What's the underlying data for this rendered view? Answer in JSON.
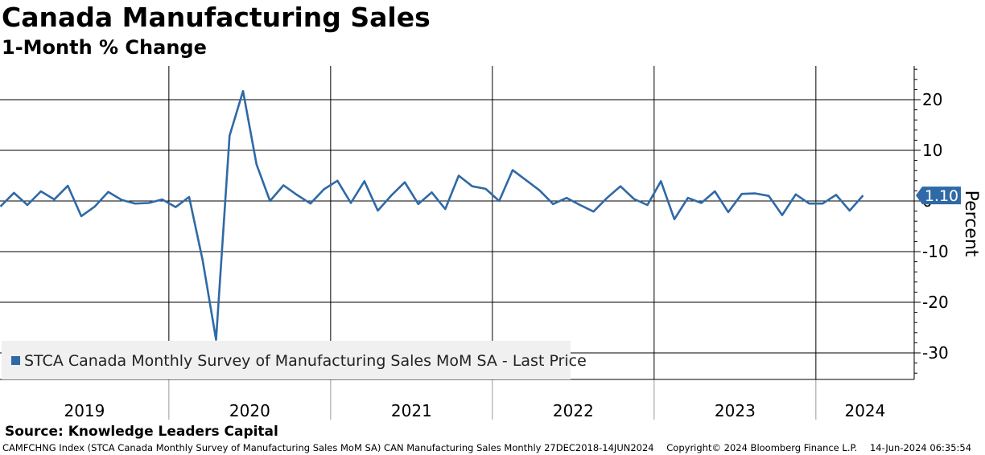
{
  "header": {
    "title": "Canada Manufacturing Sales",
    "subtitle": "1-Month % Change"
  },
  "legend": {
    "label": "STCA Canada Monthly Survey of Manufacturing Sales MoM SA - Last Price"
  },
  "source": "Source: Knowledge Leaders Capital",
  "footer": {
    "ticker": "CAMFCHNG Index (STCA Canada Monthly Survey of Manufacturing Sales MoM SA) CAN Manufacturing Sales  Monthly 27DEC2018-14JUN2024",
    "copyright": "Copyright© 2024 Bloomberg Finance L.P.",
    "timestamp": "14-Jun-2024 06:35:54"
  },
  "colors": {
    "series": "#2f69a6",
    "badge": "#2f69a6",
    "grid": "#000000"
  },
  "chart_data": {
    "type": "line",
    "title": "Canada Manufacturing Sales",
    "subtitle": "1-Month % Change",
    "ylabel": "Percent",
    "xlabel": "",
    "ylim": [
      -35,
      27
    ],
    "y_ticks": [
      20,
      10,
      0,
      -10,
      -20,
      -30
    ],
    "x_start": "2018-12",
    "year_labels": [
      "2019",
      "2020",
      "2021",
      "2022",
      "2023",
      "2024"
    ],
    "last_value_label": "1.10",
    "legend_position": "bottom-left",
    "grid": true,
    "series": [
      {
        "name": "STCA Canada Monthly Survey of Manufacturing Sales MoM SA - Last Price",
        "x": [
          "2018-12",
          "2019-01",
          "2019-02",
          "2019-03",
          "2019-04",
          "2019-05",
          "2019-06",
          "2019-07",
          "2019-08",
          "2019-09",
          "2019-10",
          "2019-11",
          "2019-12",
          "2020-01",
          "2020-02",
          "2020-03",
          "2020-04",
          "2020-05",
          "2020-06",
          "2020-07",
          "2020-08",
          "2020-09",
          "2020-10",
          "2020-11",
          "2020-12",
          "2021-01",
          "2021-02",
          "2021-03",
          "2021-04",
          "2021-05",
          "2021-06",
          "2021-07",
          "2021-08",
          "2021-09",
          "2021-10",
          "2021-11",
          "2021-12",
          "2022-01",
          "2022-02",
          "2022-03",
          "2022-04",
          "2022-05",
          "2022-06",
          "2022-07",
          "2022-08",
          "2022-09",
          "2022-10",
          "2022-11",
          "2022-12",
          "2023-01",
          "2023-02",
          "2023-03",
          "2023-04",
          "2023-05",
          "2023-06",
          "2023-07",
          "2023-08",
          "2023-09",
          "2023-10",
          "2023-11",
          "2023-12",
          "2024-01",
          "2024-02",
          "2024-03",
          "2024-04"
        ],
        "values": [
          -1.1,
          1.6,
          -0.8,
          1.9,
          0.3,
          3.0,
          -3.0,
          -1.1,
          1.8,
          0.2,
          -0.5,
          -0.4,
          0.3,
          -1.2,
          0.8,
          -11.7,
          -27.4,
          12.9,
          21.7,
          7.2,
          0.0,
          3.1,
          1.2,
          -0.5,
          2.3,
          4.0,
          -0.4,
          3.9,
          -1.9,
          1.1,
          3.7,
          -0.6,
          1.7,
          -1.6,
          5.0,
          2.9,
          2.4,
          0.0,
          6.1,
          4.1,
          2.1,
          -0.6,
          0.6,
          -0.8,
          -2.1,
          0.6,
          2.9,
          0.4,
          -0.8,
          3.9,
          -3.6,
          0.6,
          -0.4,
          1.9,
          -2.2,
          1.4,
          1.5,
          1.0,
          -2.8,
          1.3,
          -0.5,
          -0.5,
          1.2,
          -1.9,
          1.1
        ]
      }
    ]
  }
}
